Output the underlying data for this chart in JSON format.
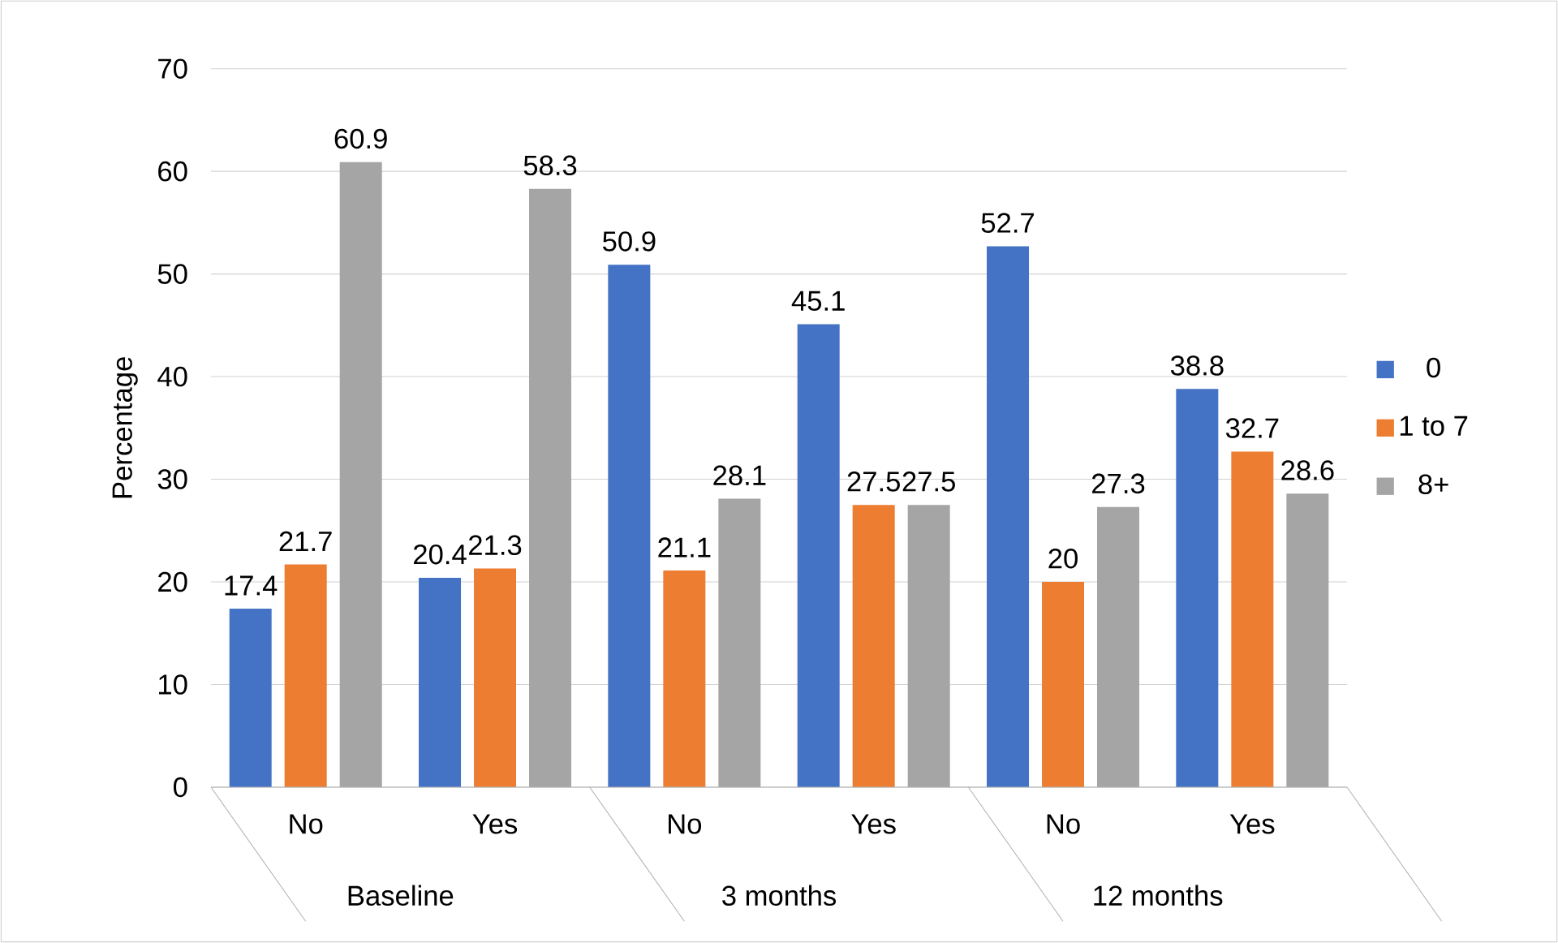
{
  "chart_data": {
    "type": "bar",
    "ylabel": "Percentage",
    "categories": [
      "No",
      "Yes",
      "No",
      "Yes",
      "No",
      "Yes"
    ],
    "series": [
      {
        "name": "0",
        "color": "#4472c4",
        "values": [
          17.4,
          20.4,
          50.9,
          45.1,
          52.7,
          38.8
        ]
      },
      {
        "name": "1 to 7",
        "color": "#ed7d31",
        "values": [
          21.7,
          21.3,
          21.1,
          27.5,
          20,
          32.7
        ]
      },
      {
        "name": "8+",
        "color": "#a5a5a5",
        "values": [
          60.9,
          58.3,
          28.1,
          27.5,
          27.3,
          28.6
        ]
      }
    ],
    "annotations": [
      "Baseline",
      "3 months",
      "12 months"
    ],
    "ylim": [
      0,
      70
    ],
    "yticks": [
      0,
      10,
      20,
      30,
      40,
      50,
      60,
      70
    ],
    "grid": "y",
    "legend": "right",
    "data_labels": true
  }
}
